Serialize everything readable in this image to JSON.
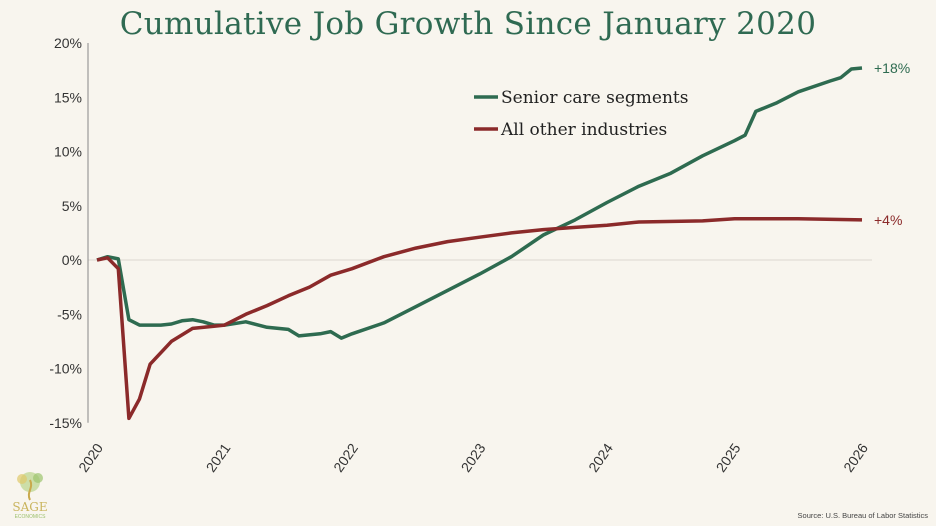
{
  "chart_data": {
    "type": "line",
    "title": "Cumulative Job Growth Since January 2020",
    "xlabel": "",
    "ylabel": "",
    "ylim": [
      -15,
      20
    ],
    "yticks": [
      20,
      15,
      10,
      5,
      0,
      -5,
      -10,
      -15
    ],
    "ytick_labels": [
      "20%",
      "15%",
      "10%",
      "5%",
      "0%",
      "-5%",
      "-10%",
      "-15%"
    ],
    "xlim": [
      "2020-01",
      "2026-01"
    ],
    "xticks": [
      "2020",
      "2021",
      "2022",
      "2023",
      "2024",
      "2025",
      "2026"
    ],
    "grid": "zero-line only",
    "legend_placement": "top-center",
    "series": [
      {
        "name": "Senior care segments",
        "color": "#2e6b50",
        "end_label": "+18%",
        "points": [
          [
            "2020-01",
            0
          ],
          [
            "2020-02",
            0.3
          ],
          [
            "2020-03",
            0.1
          ],
          [
            "2020-04",
            -5.5
          ],
          [
            "2020-05",
            -6.0
          ],
          [
            "2020-07",
            -6.0
          ],
          [
            "2020-08",
            -5.9
          ],
          [
            "2020-09",
            -5.6
          ],
          [
            "2020-10",
            -5.5
          ],
          [
            "2020-11",
            -5.7
          ],
          [
            "2020-12",
            -6.0
          ],
          [
            "2021-01",
            -6.0
          ],
          [
            "2021-03",
            -5.7
          ],
          [
            "2021-05",
            -6.2
          ],
          [
            "2021-07",
            -6.4
          ],
          [
            "2021-08",
            -7.0
          ],
          [
            "2021-10",
            -6.8
          ],
          [
            "2021-11",
            -6.6
          ],
          [
            "2021-12",
            -7.2
          ],
          [
            "2022-01",
            -6.8
          ],
          [
            "2022-04",
            -5.8
          ],
          [
            "2022-07",
            -4.3
          ],
          [
            "2022-10",
            -2.8
          ],
          [
            "2023-01",
            -1.3
          ],
          [
            "2023-04",
            0.3
          ],
          [
            "2023-07",
            2.3
          ],
          [
            "2023-10",
            3.7
          ],
          [
            "2024-01",
            5.3
          ],
          [
            "2024-04",
            6.8
          ],
          [
            "2024-07",
            8.0
          ],
          [
            "2024-10",
            9.6
          ],
          [
            "2025-01",
            11.0
          ],
          [
            "2025-02",
            11.5
          ],
          [
            "2025-03",
            13.7
          ],
          [
            "2025-05",
            14.5
          ],
          [
            "2025-07",
            15.5
          ],
          [
            "2025-10",
            16.5
          ],
          [
            "2025-11",
            16.8
          ],
          [
            "2025-12",
            17.6
          ],
          [
            "2026-01",
            17.7
          ]
        ]
      },
      {
        "name": "All other industries",
        "color": "#8b2a2a",
        "end_label": "+4%",
        "points": [
          [
            "2020-01",
            0
          ],
          [
            "2020-02",
            0.2
          ],
          [
            "2020-03",
            -0.8
          ],
          [
            "2020-04",
            -14.6
          ],
          [
            "2020-05",
            -12.8
          ],
          [
            "2020-06",
            -9.6
          ],
          [
            "2020-08",
            -7.5
          ],
          [
            "2020-10",
            -6.3
          ],
          [
            "2020-12",
            -6.1
          ],
          [
            "2021-01",
            -6.0
          ],
          [
            "2021-03",
            -5.0
          ],
          [
            "2021-05",
            -4.2
          ],
          [
            "2021-07",
            -3.3
          ],
          [
            "2021-09",
            -2.5
          ],
          [
            "2021-11",
            -1.4
          ],
          [
            "2022-01",
            -0.8
          ],
          [
            "2022-04",
            0.3
          ],
          [
            "2022-07",
            1.1
          ],
          [
            "2022-10",
            1.7
          ],
          [
            "2023-01",
            2.1
          ],
          [
            "2023-04",
            2.5
          ],
          [
            "2023-07",
            2.8
          ],
          [
            "2023-10",
            3.0
          ],
          [
            "2024-01",
            3.2
          ],
          [
            "2024-04",
            3.5
          ],
          [
            "2024-10",
            3.6
          ],
          [
            "2025-01",
            3.8
          ],
          [
            "2025-07",
            3.8
          ],
          [
            "2026-01",
            3.7
          ]
        ]
      }
    ]
  },
  "source": "Source: U.S. Bureau of Labor Statistics",
  "logo": {
    "word": "SAGE",
    "sub": "ECONOMICS"
  }
}
